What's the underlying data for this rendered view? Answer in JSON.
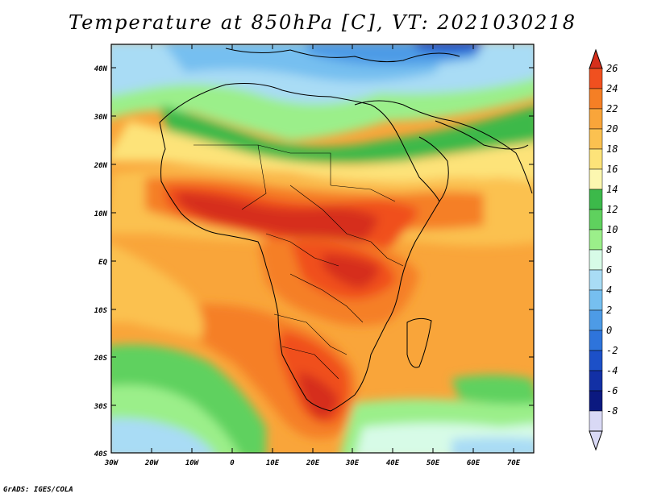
{
  "title": "Temperature at 850hPa [C], VT: 2021030218",
  "credit": "GrADS: IGES/COLA",
  "lat_labels": [
    "40N",
    "30N",
    "20N",
    "10N",
    "EQ",
    "10S",
    "20S",
    "30S",
    "40S"
  ],
  "lon_labels": [
    "30W",
    "20W",
    "10W",
    "0",
    "10E",
    "20E",
    "30E",
    "40E",
    "50E",
    "60E",
    "70E"
  ],
  "colorbar": {
    "labels": [
      "26",
      "24",
      "22",
      "20",
      "18",
      "16",
      "14",
      "12",
      "10",
      "8",
      "6",
      "4",
      "2",
      "0",
      "-2",
      "-4",
      "-6",
      "-8"
    ],
    "colors": [
      "#d62f1b",
      "#f0501f",
      "#f57f25",
      "#f9a53a",
      "#fbc150",
      "#fde379",
      "#fcf7b0",
      "#3cb94a",
      "#5fd15e",
      "#9bef8a",
      "#d7fbe7",
      "#a9dcf5",
      "#76bff0",
      "#4d9be6",
      "#2e74db",
      "#1c50c8",
      "#1230a5",
      "#0b1980",
      "#d9d9f5"
    ]
  }
}
